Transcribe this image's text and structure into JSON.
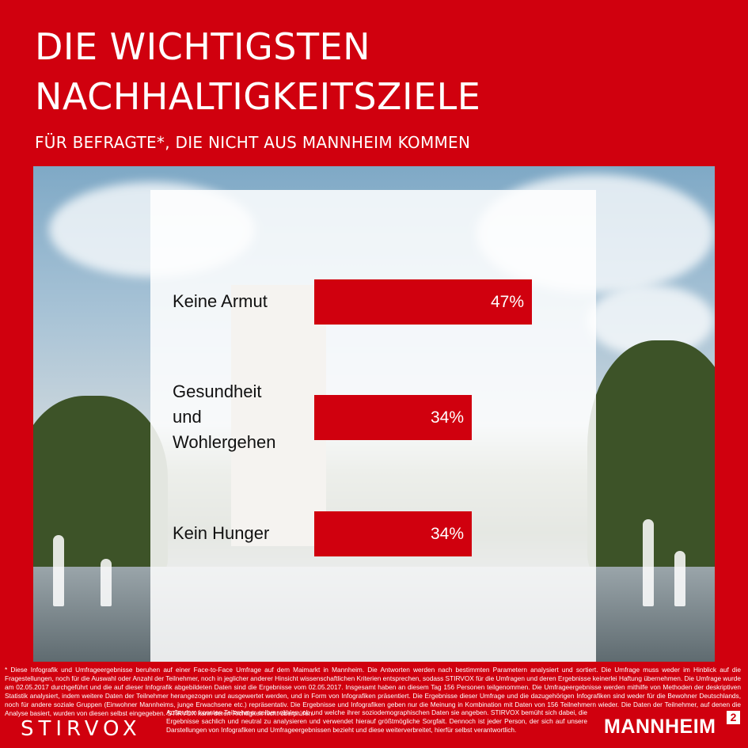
{
  "title_line1": "DIE WICHTIGSTEN",
  "title_line2": "NACHHALTIGKEITSZIELE",
  "subtitle": "FÜR BEFRAGTE*, DIE NICHT AUS MANNHEIM KOMMEN",
  "chart_data": {
    "type": "bar",
    "orientation": "horizontal",
    "title": "DIE WICHTIGSTEN NACHHALTIGKEITSZIELE",
    "subtitle": "FÜR BEFRAGTE*, DIE NICHT AUS MANNHEIM KOMMEN",
    "categories": [
      "Keine Armut",
      "Gesundheit und Wohlergehen",
      "Kein Hunger"
    ],
    "category_lines": [
      [
        "Keine Armut"
      ],
      [
        "Gesundheit",
        "und",
        "Wohlergehen"
      ],
      [
        "Kein Hunger"
      ]
    ],
    "values": [
      47,
      34,
      34
    ],
    "value_labels": [
      "47%",
      "34%",
      "34%"
    ],
    "unit": "%",
    "bar_color": "#d0000e"
  },
  "footnote": {
    "part1": "* Diese Infografik und Umfrageergebnisse beruhen auf einer Face-to-Face Umfrage auf dem Maimarkt in Mannheim. Die Antworten werden nach bestimmten Parametern analysiert und sortiert. Die Umfrage muss weder im Hinblick auf die Fragestellungen, noch für die Auswahl oder Anzahl der Teilnehmer, noch in jeglicher anderer Hinsicht wissenschaftlichen Kriterien entsprechen, sodass STIRVOX für die Umfragen und deren Ergebnisse keinerlei Haftung übernehmen. Die Umfrage wurde am 02.05.2017 durchgeführt und die auf dieser Infografik abgebildeten Daten sind die Ergebnisse vom 02.05.2017. Insgesamt haben an diesem Tag 156 Personen teilgenommen. Die Umfrageergebnisse werden mithilfe von Methoden der deskriptiven Statistik analysiert, indem weitere Daten der Teilnehmer herangezogen und ausgewertet werden, und in Form von Infografiken präsentiert. Die Ergebnisse dieser Umfrage und die dazugehörigen Infografiken sind weder für die Bewohner Deutschlands, noch für andere soziale Gruppen (Einwohner Mannheims, junge Erwachsene etc.) repräsentativ. Die Ergebnisse und Infografiken geben nur die Meinung in Kombination mit Daten von 156 Teilnehmern wieder. Die Daten der Teilnehmer, auf denen die Analyse basiert, wurden von diesen selbst eingegeben. STIRVOX kann deren Richtigkeit nicht überprüfen.",
    "part2": "Außerdem konnten Teilnehmer selber wählen, ob und welche ihrer soziodemographischen Daten sie angeben. STIRVOX bemüht sich dabei, die Ergebnisse sachlich und neutral zu analysieren und verwendet hierauf größtmögliche Sorgfalt. Dennoch ist jeder Person, der sich auf unsere Darstellungen von Infografiken und Umfrageergebnissen bezieht und diese weiterverbreitet, hierfür selbst verantwortlich."
  },
  "logos": {
    "left": "STIRVOX",
    "right": "MANNHEIM",
    "right_sup": "2"
  },
  "colors": {
    "brand_red": "#d0000e",
    "panel": "#ffffff",
    "text_dark": "#111111"
  }
}
